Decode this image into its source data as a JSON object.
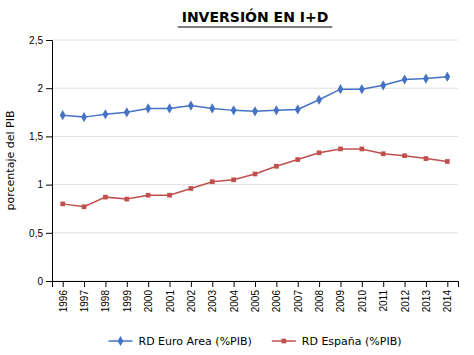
{
  "chart_data": {
    "type": "line",
    "title": "INVERSIÓN EN I+D",
    "y_label": "porcentaje del PIB",
    "x": [
      1996,
      1997,
      1998,
      1999,
      2000,
      2001,
      2002,
      2003,
      2004,
      2005,
      2006,
      2007,
      2008,
      2009,
      2010,
      2011,
      2012,
      2013,
      2014
    ],
    "xlim": [
      1995.5,
      2014.5
    ],
    "xticks": [
      1996,
      1997,
      1998,
      1999,
      2000,
      2001,
      2002,
      2003,
      2004,
      2005,
      2006,
      2007,
      2008,
      2009,
      2010,
      2011,
      2012,
      2013,
      2014
    ],
    "series": [
      {
        "name": "RD Euro Area (%PIB)",
        "color": "#4472c4",
        "marker": "diamond",
        "values": [
          1.72,
          1.7,
          1.73,
          1.75,
          1.79,
          1.79,
          1.82,
          1.79,
          1.77,
          1.76,
          1.77,
          1.78,
          1.88,
          1.99,
          1.99,
          2.03,
          2.09,
          2.1,
          2.12
        ]
      },
      {
        "name": "RD España (%PIB)",
        "color": "#c0504d",
        "marker": "square",
        "values": [
          0.8,
          0.77,
          0.87,
          0.85,
          0.89,
          0.89,
          0.96,
          1.03,
          1.05,
          1.11,
          1.19,
          1.26,
          1.33,
          1.37,
          1.37,
          1.32,
          1.3,
          1.27,
          1.24
        ]
      }
    ],
    "ylim": [
      0,
      2.5
    ],
    "yticks": [
      0,
      {
        "value": 0.5,
        "label": "0,5"
      },
      1,
      {
        "value": 1.5,
        "label": "1,5"
      },
      2,
      {
        "value": 2.5,
        "label": "2,5"
      }
    ],
    "grid": "y",
    "legend": "bottom"
  }
}
